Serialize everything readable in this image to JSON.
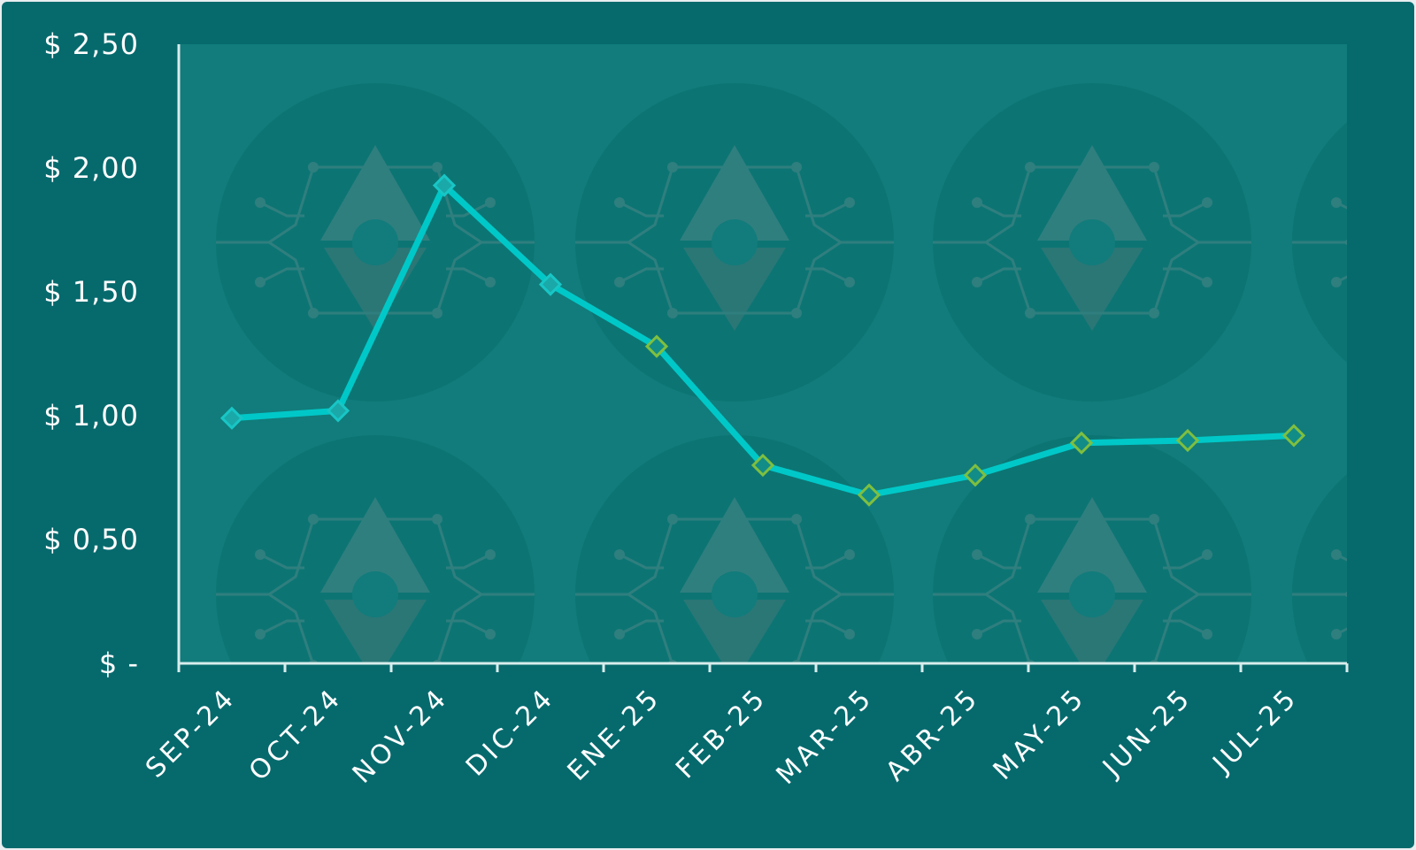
{
  "chart_data": {
    "type": "line",
    "title": "",
    "xlabel": "",
    "ylabel": "",
    "categories": [
      "SEP-24",
      "OCT-24",
      "NOV-24",
      "DIC-24",
      "ENE-25",
      "FEB-25",
      "MAR-25",
      "ABR-25",
      "MAY-25",
      "JUN-25",
      "JUL-25"
    ],
    "series": [
      {
        "values": [
          0.99,
          1.02,
          1.93,
          1.53,
          1.28,
          0.8,
          0.68,
          0.76,
          0.89,
          0.9,
          0.92
        ]
      }
    ],
    "ylim": [
      0,
      2.5
    ],
    "y_ticks": [
      {
        "value": 0,
        "label": "$ -"
      },
      {
        "value": 0.5,
        "label": "$ 0,50"
      },
      {
        "value": 1.0,
        "label": "$ 1,00"
      },
      {
        "value": 1.5,
        "label": "$ 1,50"
      },
      {
        "value": 2.0,
        "label": "$ 2,00"
      },
      {
        "value": 2.5,
        "label": "$ 2,50"
      }
    ],
    "grid": false,
    "legend": "none",
    "colors": {
      "background": "#066a6d",
      "plot_area": "#117c7b",
      "line": "#00c8c8",
      "marker_early": "#1aa8a8",
      "marker_border_early": "#18c6c6",
      "marker_late": "#128c86",
      "marker_border_late": "#7fbf3f",
      "axis": "#d8ecec"
    }
  }
}
